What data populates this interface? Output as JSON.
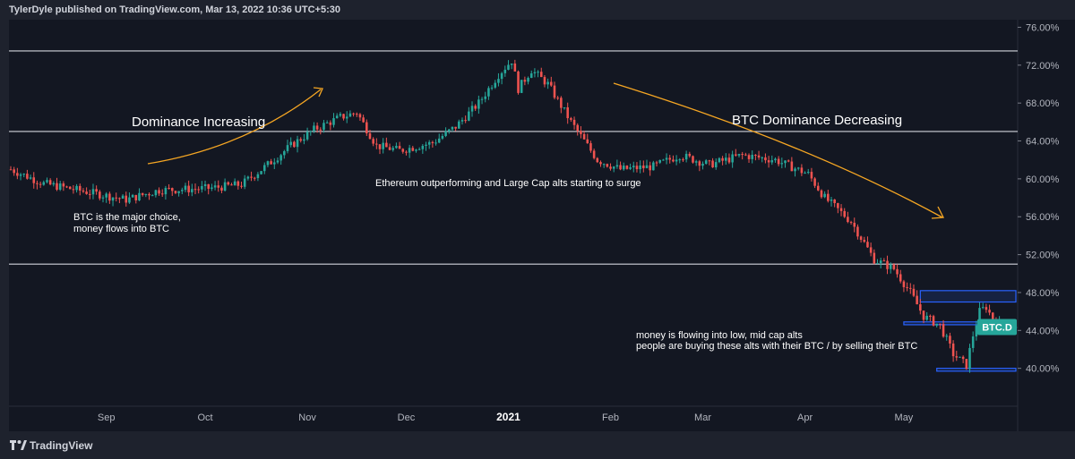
{
  "header": {
    "publisher_line": "TylerDyle published on TradingView.com, Mar 13, 2022 10:36 UTC+5:30"
  },
  "footer": {
    "brand": "TradingView"
  },
  "colors": {
    "background": "#131722",
    "frame": "#1e222d",
    "up_candle": "#26a69a",
    "down_candle": "#ef5350",
    "horizontal_line": "#d1d4dc",
    "trend_arrow": "#f5a623",
    "zone_box": "#2962ff",
    "ticker_badge": "#26a69a"
  },
  "chart_data": {
    "type": "candlestick",
    "ticker": "BTC.D",
    "title": "",
    "xlabel": "",
    "ylabel": "",
    "ylim": [
      36.0,
      76.8
    ],
    "y_ticks": [
      "76.00%",
      "72.00%",
      "68.00%",
      "64.00%",
      "60.00%",
      "56.00%",
      "52.00%",
      "48.00%",
      "44.00%",
      "40.00%"
    ],
    "y_tick_values": [
      76,
      72,
      68,
      64,
      60,
      56,
      52,
      48,
      44,
      40
    ],
    "x_ticks": [
      "Sep",
      "Oct",
      "Nov",
      "Dec",
      "2021",
      "Feb",
      "Mar",
      "Apr",
      "May"
    ],
    "x_tick_days": [
      29,
      59,
      90,
      120,
      151,
      182,
      210,
      241,
      271
    ],
    "x_range_days": [
      0,
      305
    ],
    "series_close_anchors": [
      [
        0,
        61
      ],
      [
        10,
        59.5
      ],
      [
        25,
        58.5
      ],
      [
        35,
        57.8
      ],
      [
        45,
        58.8
      ],
      [
        60,
        59
      ],
      [
        70,
        59.4
      ],
      [
        78,
        61.5
      ],
      [
        85,
        63.5
      ],
      [
        92,
        65.2
      ],
      [
        100,
        66.5
      ],
      [
        105,
        67
      ],
      [
        111,
        63.5
      ],
      [
        118,
        63
      ],
      [
        128,
        63.8
      ],
      [
        135,
        65.5
      ],
      [
        142,
        68
      ],
      [
        148,
        71
      ],
      [
        152,
        72.5
      ],
      [
        154,
        69.5
      ],
      [
        158,
        71.5
      ],
      [
        163,
        70
      ],
      [
        170,
        66
      ],
      [
        178,
        62
      ],
      [
        185,
        61
      ],
      [
        195,
        61.3
      ],
      [
        203,
        62.5
      ],
      [
        212,
        61.5
      ],
      [
        222,
        62.5
      ],
      [
        232,
        62
      ],
      [
        242,
        60.5
      ],
      [
        247,
        58
      ],
      [
        255,
        55.5
      ],
      [
        262,
        51.5
      ],
      [
        268,
        50.5
      ],
      [
        273,
        48
      ],
      [
        277,
        45.5
      ],
      [
        282,
        44.5
      ],
      [
        286,
        41.5
      ],
      [
        290,
        40.3
      ],
      [
        292,
        43.5
      ],
      [
        294,
        46
      ],
      [
        296,
        46.5
      ],
      [
        299,
        44.5
      ],
      [
        302,
        45
      ],
      [
        305,
        44.2
      ]
    ],
    "last_value_label": "BTC.D",
    "horizontal_levels": [
      73.5,
      65,
      51
    ],
    "zones": [
      {
        "y_top": 48.2,
        "y_bottom": 47.0,
        "day_start": 276,
        "day_end": 305
      },
      {
        "y_top": 44.9,
        "y_bottom": 44.6,
        "day_start": 271,
        "day_end": 305
      },
      {
        "y_top": 40.0,
        "y_bottom": 39.7,
        "day_start": 281,
        "day_end": 305
      }
    ],
    "annotations": {
      "dominance_increasing": "Dominance Increasing",
      "btc_dominance_decreasing": "BTC Dominance Decreasing",
      "eth_outperforming": "Ethereum outperforming and Large Cap alts starting to surge",
      "btc_major_choice_line1": "BTC is the major choice,",
      "btc_major_choice_line2": "money flows into BTC",
      "money_flowing_line1": "money is flowing into low, mid cap alts",
      "money_flowing_line2": "people are buying these alts with their BTC / by selling their BTC"
    }
  }
}
